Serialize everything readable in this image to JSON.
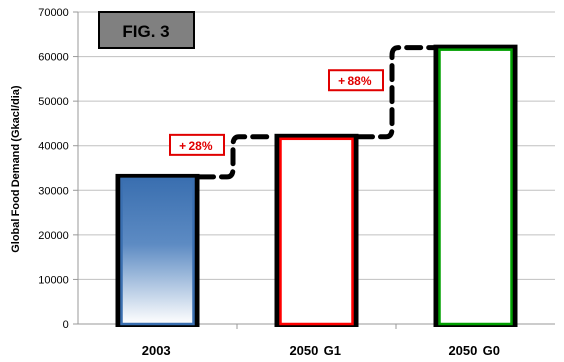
{
  "figure_label": "FIG. 3",
  "chart_data": {
    "type": "bar",
    "title": "",
    "xlabel": "",
    "ylabel": "Global Food Demand (Gkacl/dia) ",
    "categories": [
      "2003 ",
      "2050  G1 ",
      "2050  G0 "
    ],
    "values": [
      33000,
      42000,
      62000
    ],
    "ylim": [
      0,
      70000
    ],
    "yticks": [
      "0 ",
      "10000 ",
      "20000 ",
      "30000 ",
      "40000 ",
      "50000 ",
      "60000 ",
      "70000 "
    ],
    "grid": "horizontal",
    "legend": "none",
    "bar_colors": [
      "#3a6fb0",
      "#ff0000",
      "#00a000"
    ],
    "annotations": [
      {
        "text": "+ 28% ",
        "from": 0,
        "to": 1
      },
      {
        "text": "+ 88% ",
        "from": 1,
        "to": 2
      }
    ]
  }
}
